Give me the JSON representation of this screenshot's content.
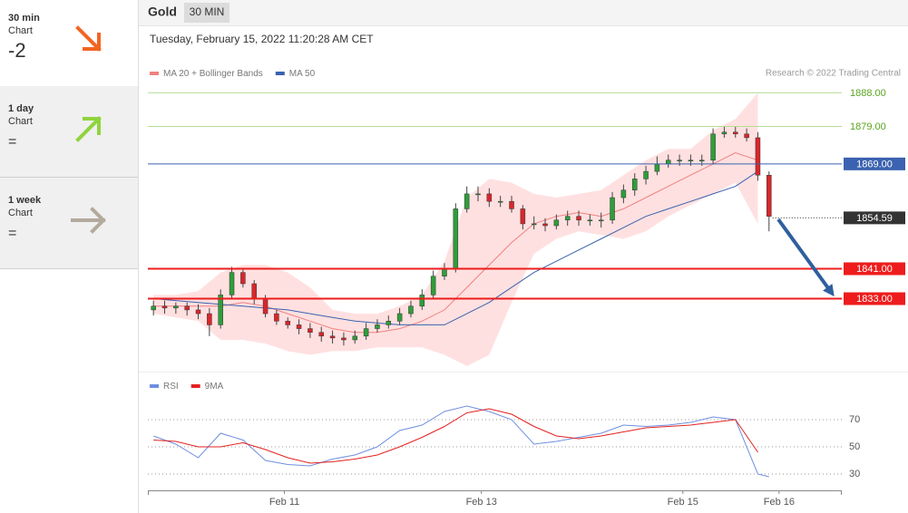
{
  "sidebar": {
    "panels": [
      {
        "period": "30 min",
        "label": "Chart",
        "signal": "-2"
      },
      {
        "period": "1 day",
        "label": "Chart",
        "signal": "="
      },
      {
        "period": "1 week",
        "label": "Chart",
        "signal": "="
      }
    ]
  },
  "header": {
    "title": "Gold",
    "timeframe": "30 MIN",
    "timestamp": "Tuesday, February 15, 2022 11:20:28 AM CET"
  },
  "source": "Research © 2022 Trading Central",
  "chart_data": [
    {
      "type": "candlestick",
      "up_color": "#2e9e3a",
      "down_color": "#d9262b",
      "x": [
        0,
        1,
        2,
        3,
        4,
        5,
        6,
        7,
        8,
        9,
        10,
        11,
        12,
        13,
        14,
        15,
        16,
        17,
        18,
        19,
        20,
        21,
        22,
        23,
        24,
        25,
        26,
        27,
        28,
        29,
        30,
        31,
        32,
        33,
        34,
        35,
        36,
        37,
        38,
        39,
        40,
        41,
        42,
        43,
        44,
        45,
        46,
        47,
        48,
        49,
        50,
        51,
        52,
        53,
        54,
        55
      ],
      "open": [
        1830,
        1831,
        1830.5,
        1831,
        1830,
        1829,
        1826,
        1834,
        1840,
        1837,
        1833,
        1829,
        1827,
        1826,
        1825,
        1824,
        1823,
        1822.5,
        1822,
        1823,
        1825,
        1826,
        1827,
        1829,
        1831,
        1834,
        1839,
        1841,
        1857,
        1861,
        1861,
        1859,
        1859,
        1857,
        1853,
        1853,
        1852.5,
        1854,
        1855,
        1854,
        1854,
        1854,
        1860,
        1862,
        1865,
        1867,
        1869,
        1870,
        1870,
        1870,
        1870,
        1877,
        1877.5,
        1877,
        1876,
        1866
      ],
      "high": [
        1832.5,
        1832.5,
        1832,
        1832,
        1831.5,
        1830.5,
        1835.5,
        1841.5,
        1841,
        1838,
        1834,
        1830,
        1828,
        1827.5,
        1826.5,
        1825.5,
        1824.5,
        1824,
        1824.5,
        1826.5,
        1827.5,
        1828.5,
        1830.5,
        1832.5,
        1835.5,
        1840.5,
        1842.5,
        1858.5,
        1863,
        1863,
        1862.5,
        1860.5,
        1860.5,
        1858,
        1855,
        1854.5,
        1855.5,
        1856.5,
        1856.5,
        1855.5,
        1856,
        1861.5,
        1863.5,
        1866.5,
        1868.5,
        1871,
        1871.5,
        1871.5,
        1871.5,
        1871.5,
        1878.5,
        1879,
        1879,
        1878.5,
        1877.5,
        1867
      ],
      "low": [
        1828.5,
        1829,
        1829,
        1828.5,
        1827.5,
        1823,
        1825,
        1833,
        1836,
        1831.5,
        1828,
        1826,
        1825,
        1823.5,
        1822.5,
        1821.5,
        1821,
        1820.5,
        1821,
        1822,
        1824,
        1825,
        1826,
        1828,
        1830,
        1833,
        1838,
        1840,
        1856,
        1859,
        1857.5,
        1857.5,
        1856,
        1851.5,
        1851.5,
        1851,
        1851.5,
        1852.5,
        1852.5,
        1852.5,
        1852,
        1853,
        1858.5,
        1860.5,
        1863.5,
        1866,
        1868,
        1868.5,
        1868.5,
        1868.5,
        1869,
        1876,
        1876,
        1875,
        1864.5,
        1851
      ],
      "close": [
        1831,
        1830.5,
        1831,
        1830,
        1829,
        1826,
        1834,
        1840,
        1837,
        1833,
        1829,
        1827,
        1826,
        1825,
        1824,
        1823,
        1822.5,
        1822,
        1823,
        1825,
        1826,
        1827,
        1829,
        1831,
        1834,
        1839,
        1841,
        1857,
        1861,
        1861,
        1859,
        1859,
        1857,
        1853,
        1853,
        1852.5,
        1854,
        1855,
        1854,
        1854,
        1854,
        1860,
        1862,
        1865,
        1867,
        1869,
        1870,
        1870,
        1870,
        1870,
        1877,
        1877.5,
        1877,
        1876,
        1866,
        1855
      ],
      "xlim": [
        -0.5,
        61.5
      ],
      "ylim": [
        1814,
        1891
      ],
      "series": [
        {
          "name": "MA 20 + Bollinger Bands",
          "color": "#f08080",
          "band_color": "#ffdada",
          "x": [
            0,
            2,
            4,
            6,
            8,
            10,
            12,
            14,
            16,
            18,
            20,
            22,
            24,
            26,
            28,
            30,
            32,
            34,
            36,
            38,
            40,
            42,
            44,
            46,
            48,
            50,
            52,
            54
          ],
          "values": [
            1831,
            1831,
            1831,
            1831,
            1832,
            1831,
            1829,
            1827,
            1825,
            1824,
            1824,
            1825,
            1827,
            1830,
            1836,
            1842,
            1848,
            1853,
            1855,
            1856,
            1855,
            1857,
            1860,
            1863,
            1866,
            1869,
            1872,
            1870
          ],
          "upper": [
            1834,
            1834,
            1835,
            1840,
            1842,
            1842,
            1840,
            1836,
            1830,
            1829,
            1829,
            1831,
            1834,
            1843,
            1860,
            1865,
            1864,
            1861,
            1860,
            1861,
            1862,
            1866,
            1870,
            1873,
            1873,
            1878,
            1881,
            1888
          ],
          "lower": [
            1829,
            1828,
            1827,
            1822,
            1822,
            1821,
            1819,
            1818,
            1819,
            1819,
            1820,
            1820,
            1820,
            1818,
            1815,
            1818,
            1832,
            1845,
            1849,
            1851,
            1850,
            1849,
            1851,
            1855,
            1858,
            1861,
            1864,
            1853
          ]
        },
        {
          "name": "MA 50",
          "color": "#3a62b0",
          "x": [
            0,
            2,
            4,
            6,
            8,
            10,
            12,
            14,
            16,
            18,
            20,
            22,
            24,
            26,
            28,
            30,
            32,
            34,
            36,
            38,
            40,
            42,
            44,
            46,
            48,
            50,
            52,
            54
          ],
          "values": [
            1833,
            1832.5,
            1832,
            1831.5,
            1831,
            1830.5,
            1830,
            1829,
            1828,
            1827,
            1826.5,
            1826,
            1826,
            1826,
            1829,
            1832,
            1836,
            1840,
            1843,
            1846,
            1849,
            1852,
            1855,
            1857,
            1859,
            1861,
            1863,
            1867
          ]
        }
      ],
      "levels": [
        {
          "value": 1888,
          "label": "1888.00",
          "color": "#5aa51e",
          "line_color": "#b5dd95",
          "line": "solid",
          "box": false
        },
        {
          "value": 1879,
          "label": "1879.00",
          "color": "#5aa51e",
          "line_color": "#b5dd95",
          "line": "solid",
          "box": false
        },
        {
          "value": 1869,
          "label": "1869.00",
          "color": "#3a62b0",
          "line_color": "#3a62b0",
          "line": "solid",
          "box": true
        },
        {
          "value": 1854.59,
          "label": "1854.59",
          "color": "#333333",
          "line_color": "#333333",
          "line": "dotted",
          "box": true
        },
        {
          "value": 1841,
          "label": "1841.00",
          "color": "#ee1c1c",
          "line_color": "#ee1c1c",
          "line": "bold",
          "box": true
        },
        {
          "value": 1833,
          "label": "1833.00",
          "color": "#ee1c1c",
          "line_color": "#ee1c1c",
          "line": "bold",
          "box": true
        }
      ]
    },
    {
      "type": "line",
      "xlim": [
        -0.5,
        61.5
      ],
      "ylim": [
        18,
        88
      ],
      "yticks": [
        30,
        50,
        70
      ],
      "grid": "dotted",
      "xticks": [
        {
          "value": 11.7,
          "label": "Feb 11"
        },
        {
          "value": 29.3,
          "label": "Feb 13"
        },
        {
          "value": 47.3,
          "label": "Feb 15"
        },
        {
          "value": 55.9,
          "label": "Feb 16"
        }
      ],
      "series": [
        {
          "name": "RSI",
          "color": "#6f8fe0",
          "x": [
            0,
            2,
            4,
            6,
            8,
            10,
            12,
            14,
            16,
            18,
            20,
            22,
            24,
            26,
            28,
            30,
            32,
            34,
            36,
            38,
            40,
            42,
            44,
            46,
            48,
            50,
            52,
            54,
            55
          ],
          "values": [
            58,
            52,
            42,
            60,
            55,
            40,
            37,
            36,
            41,
            44,
            50,
            62,
            66,
            76,
            80,
            76,
            70,
            52,
            54,
            57,
            60,
            66,
            65,
            66,
            68,
            72,
            70,
            30,
            28
          ]
        },
        {
          "name": "9MA",
          "color": "#e3211f",
          "x": [
            0,
            2,
            4,
            6,
            8,
            10,
            12,
            14,
            16,
            18,
            20,
            22,
            24,
            26,
            28,
            30,
            32,
            34,
            36,
            38,
            40,
            42,
            44,
            46,
            48,
            50,
            52,
            54
          ],
          "values": [
            55,
            54,
            50,
            50,
            53,
            48,
            42,
            38,
            39,
            41,
            44,
            50,
            57,
            65,
            75,
            78,
            74,
            65,
            58,
            56,
            58,
            61,
            64,
            65,
            66,
            68,
            70,
            46
          ]
        }
      ]
    }
  ]
}
